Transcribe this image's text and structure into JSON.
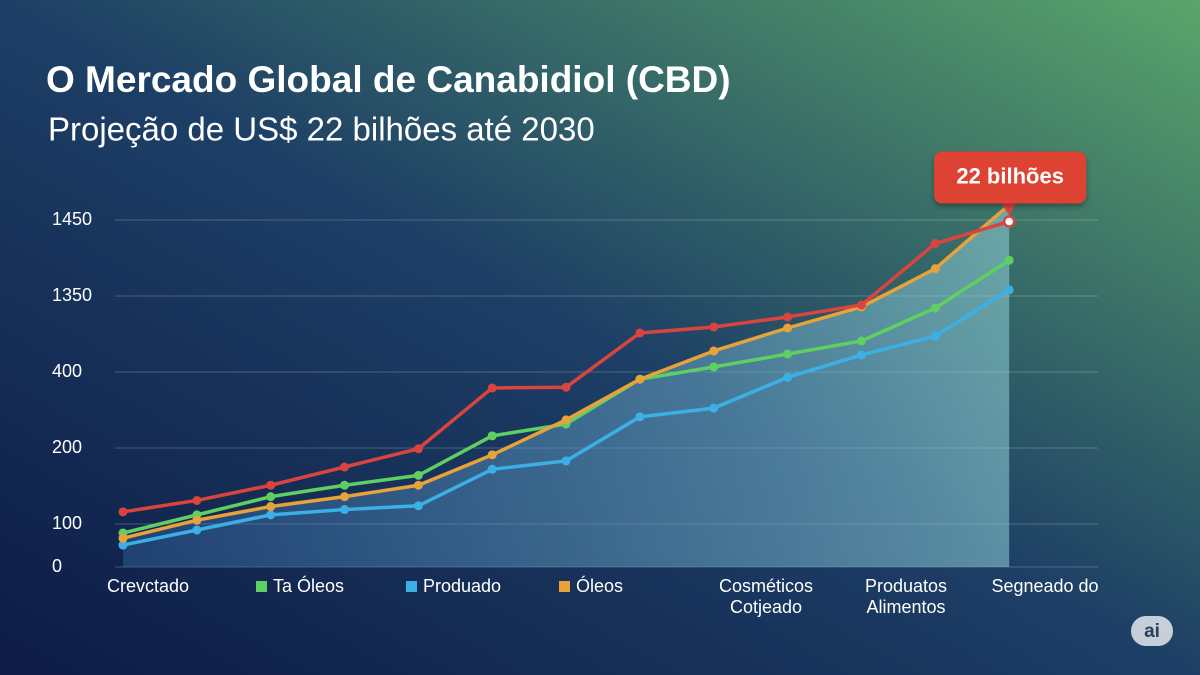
{
  "chart_data": {
    "type": "line",
    "title": "O Mercado Global de Canabidiol (CBD)",
    "subtitle": "Projeção de US$ 22 bilhões até 2030",
    "annotation": "22 bilhões",
    "badge": "ai",
    "yticks": [
      0,
      100,
      200,
      400,
      1350,
      1450
    ],
    "grid": true,
    "bottom_labels": [
      "Crevctado",
      "Cosméticos\nCotjeado",
      "Produatos\nAlimentos",
      "Segneado do"
    ],
    "series": [
      {
        "color": "#d9453e",
        "values": [
          116,
          131,
          151,
          175,
          199,
          358,
          360,
          888,
          963,
          1088,
          1238,
          1419,
          1448,
          null
        ]
      },
      {
        "name": "Ta Óleos",
        "color": "#5fcf62",
        "values": [
          79,
          112,
          136,
          151,
          164,
          232,
          263,
          381,
          463,
          625,
          788,
          1200,
          1397,
          null
        ]
      },
      {
        "name": "Produado",
        "color": "#3cb0e6",
        "values": [
          51,
          86,
          112,
          119,
          124,
          172,
          183,
          282,
          305,
          386,
          613,
          850,
          1358,
          null
        ]
      },
      {
        "name": "Óleos",
        "color": "#e8a23a",
        "values": [
          67,
          105,
          123,
          136,
          151,
          191,
          274,
          381,
          663,
          950,
          1213,
          1386,
          1470,
          null
        ]
      }
    ]
  }
}
